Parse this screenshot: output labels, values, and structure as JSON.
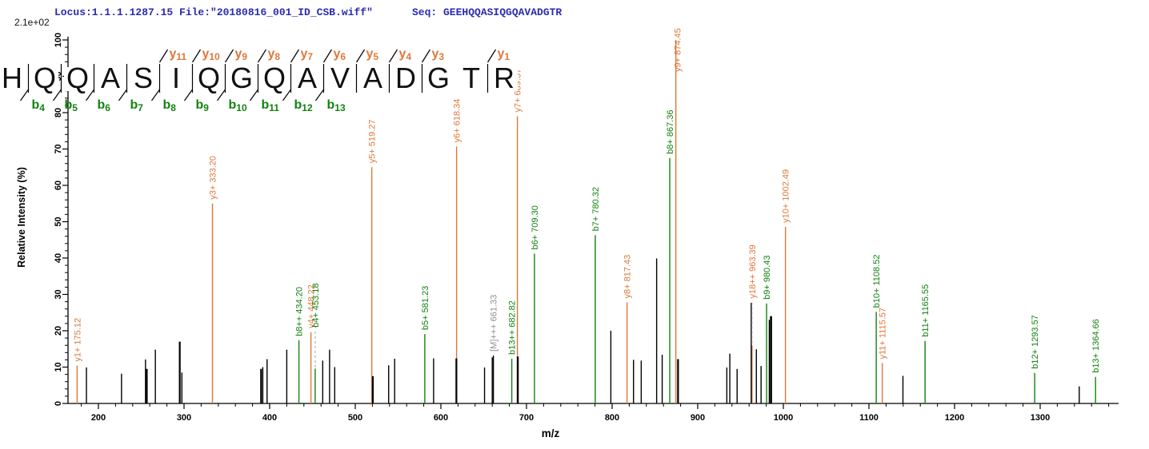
{
  "header": {
    "locus_file": "Locus:1.1.1.1287.15 File:\"20180816_001_ID_CSB.wiff\"",
    "seq": "Seq: GEEHQQASIQGQAVADGTR"
  },
  "axes": {
    "base_peak_label": "2.1e+02",
    "y_title": "Relative Intensity (%)",
    "x_title": "m/z",
    "y_tick_labels": [
      0,
      10,
      20,
      30,
      40,
      50,
      60,
      70,
      80,
      90,
      100
    ],
    "y_minor_step": 2,
    "x_tick_labels": [
      200,
      300,
      400,
      500,
      600,
      700,
      800,
      900,
      1000,
      1100,
      1200,
      1300
    ],
    "x_minor_step": 20,
    "x_minor_start": 180,
    "x_minor_end": 1380
  },
  "colors": {
    "y_ion": "#DE7738",
    "b_ion": "#12820F",
    "precursor_label": "#8F8F8F",
    "peak_black": "#000000",
    "leader_dash": "#AAAAAA",
    "header_blue": "#2B2BB0",
    "residue_black": "#111111"
  },
  "sequence_ladder": {
    "residues": [
      "H",
      "Q",
      "Q",
      "A",
      "S",
      "I",
      "Q",
      "G",
      "Q",
      "A",
      "V",
      "A",
      "D",
      "G",
      "T",
      "R"
    ],
    "boundaries": [
      {
        "after": 0,
        "b": "b4"
      },
      {
        "after": 1,
        "b": "b5"
      },
      {
        "after": 2,
        "b": "b6"
      },
      {
        "after": 3,
        "b": "b7"
      },
      {
        "after": 4,
        "b": "b8",
        "y": "y11"
      },
      {
        "after": 5,
        "b": "b9",
        "y": "y10"
      },
      {
        "after": 6,
        "b": "b10",
        "y": "y9"
      },
      {
        "after": 7,
        "b": "b11",
        "y": "y8"
      },
      {
        "after": 8,
        "b": "b12",
        "y": "y7"
      },
      {
        "after": 9,
        "b": "b13",
        "y": "y6"
      },
      {
        "after": 10,
        "y": "y5"
      },
      {
        "after": 11,
        "y": "y4"
      },
      {
        "after": 12,
        "y": "y3"
      },
      {
        "after": 14,
        "y": "y1"
      }
    ]
  },
  "chart_data": {
    "type": "bar",
    "subtype": "MS/MS fragmentation spectrum",
    "title": "",
    "xlabel": "m/z",
    "ylabel": "Relative Intensity (%)",
    "xlim": [
      165,
      1392
    ],
    "ylim": [
      0,
      100
    ],
    "base_peak_intensity": "2.1e+02",
    "annotated_peaks": [
      {
        "mz": 175.12,
        "intensity": 10.4,
        "type": "y",
        "label": "y1+ 175.12"
      },
      {
        "mz": 333.2,
        "intensity": 55.0,
        "type": "y",
        "label": "y3+ 333.20"
      },
      {
        "mz": 434.2,
        "intensity": 17.4,
        "type": "b",
        "label": "b8++ 434.20"
      },
      {
        "mz": 448.22,
        "intensity": 19.6,
        "type": "y",
        "label": "y4+ 448.22"
      },
      {
        "mz": 453.18,
        "intensity": 9.6,
        "type": "b",
        "label": "b4+ 453.18",
        "leader_from": 19.8
      },
      {
        "mz": 519.27,
        "intensity": 65.0,
        "type": "y",
        "label": "y5+ 519.27"
      },
      {
        "mz": 581.23,
        "intensity": 19.1,
        "type": "b",
        "label": "b5+ 581.23"
      },
      {
        "mz": 618.34,
        "intensity": 70.7,
        "type": "y",
        "label": "y6+ 618.34"
      },
      {
        "mz": 661.33,
        "intensity": 13.2,
        "type": "M",
        "label": "[M]+++ 661.33"
      },
      {
        "mz": 682.82,
        "intensity": 12.3,
        "type": "b",
        "label": "b13++ 682.82"
      },
      {
        "mz": 689.37,
        "intensity": 79.0,
        "type": "y",
        "label": "y7+ 689.37"
      },
      {
        "mz": 709.3,
        "intensity": 41.2,
        "type": "b",
        "label": "b6+ 709.30"
      },
      {
        "mz": 780.32,
        "intensity": 46.3,
        "type": "b",
        "label": "b7+ 780.32"
      },
      {
        "mz": 817.43,
        "intensity": 27.8,
        "type": "y",
        "label": "y8+ 817.43"
      },
      {
        "mz": 867.36,
        "intensity": 67.5,
        "type": "b",
        "label": "b8+ 867.36"
      },
      {
        "mz": 874.45,
        "intensity": 100.0,
        "type": "y",
        "label": "y9+ 874.45",
        "beside": true
      },
      {
        "mz": 963.39,
        "intensity": 16.0,
        "type": "y",
        "label": "y18++ 963.39",
        "leader_from": 27.8
      },
      {
        "mz": 980.43,
        "intensity": 27.5,
        "type": "b",
        "label": "b9+ 980.43"
      },
      {
        "mz": 1002.49,
        "intensity": 48.6,
        "type": "y",
        "label": "y10+ 1002.49"
      },
      {
        "mz": 1108.52,
        "intensity": 25.2,
        "type": "b",
        "label": "b10+ 1108.52"
      },
      {
        "mz": 1115.57,
        "intensity": 11.1,
        "type": "y",
        "label": "y11+ 1115.57"
      },
      {
        "mz": 1165.55,
        "intensity": 17.2,
        "type": "b",
        "label": "b11+ 1165.55"
      },
      {
        "mz": 1293.57,
        "intensity": 8.4,
        "type": "b",
        "label": "b12+ 1293.57"
      },
      {
        "mz": 1364.66,
        "intensity": 7.3,
        "type": "b",
        "label": "b13+ 1364.66"
      }
    ],
    "unannotated_peaks": [
      [
        186,
        9.9
      ],
      [
        227,
        8.2
      ],
      [
        255,
        12.1
      ],
      [
        256.5,
        9.5,
        2.2
      ],
      [
        266.5,
        14.8
      ],
      [
        295,
        17.0,
        2.2
      ],
      [
        297.5,
        8.5
      ],
      [
        390,
        9.5,
        2.2
      ],
      [
        392,
        10.0
      ],
      [
        397,
        12.2
      ],
      [
        420,
        14.8
      ],
      [
        462,
        11.8
      ],
      [
        470,
        14.8
      ],
      [
        476,
        10.0
      ],
      [
        520.5,
        7.5,
        2.2
      ],
      [
        539,
        10.5
      ],
      [
        546,
        12.3
      ],
      [
        591.5,
        12.4
      ],
      [
        618.1,
        12.4,
        2.2
      ],
      [
        651,
        9.9
      ],
      [
        660.0,
        12.7
      ],
      [
        689.8,
        12.9,
        2.4
      ],
      [
        798.5,
        20.0
      ],
      [
        825,
        12.0
      ],
      [
        834,
        11.8
      ],
      [
        852,
        39.9
      ],
      [
        858.5,
        13.4
      ],
      [
        877,
        12.2,
        2.2
      ],
      [
        934,
        9.9
      ],
      [
        937.5,
        13.7
      ],
      [
        946,
        9.5
      ],
      [
        962.5,
        27.7
      ],
      [
        968.5,
        14.9
      ],
      [
        974,
        10.3
      ],
      [
        983.6,
        23.0
      ],
      [
        985.6,
        24.0,
        2.6
      ],
      [
        1139.7,
        7.6
      ],
      [
        1345.6,
        4.7
      ]
    ]
  }
}
